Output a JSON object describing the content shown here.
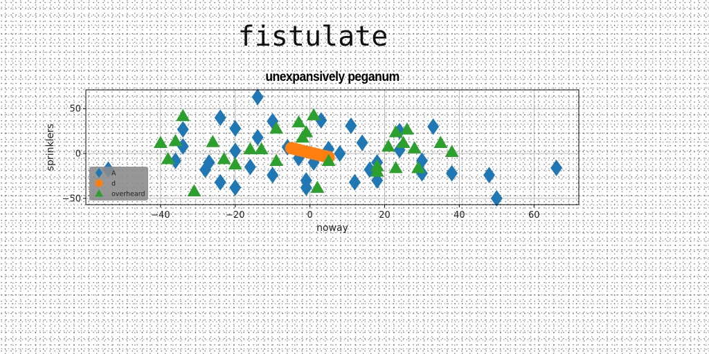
{
  "page": {
    "title": "fistulate"
  },
  "chart_data": {
    "type": "scatter",
    "title": "unexpansively peganum",
    "xlabel": "noway",
    "ylabel": "sprinklers",
    "xlim": [
      -60,
      72
    ],
    "ylim": [
      -57,
      71
    ],
    "xticks": [
      -40,
      -20,
      0,
      20,
      40,
      60
    ],
    "yticks": [
      -50,
      0,
      50
    ],
    "grid": true,
    "legend_position": "lower-left",
    "series": [
      {
        "name": "A",
        "marker": "diamond",
        "color": "#1f77b4",
        "points": [
          [
            -54,
            -18
          ],
          [
            -34,
            27
          ],
          [
            -34,
            8
          ],
          [
            -36,
            -8
          ],
          [
            -28,
            -18
          ],
          [
            -27,
            -10
          ],
          [
            -24,
            40
          ],
          [
            -24,
            -32
          ],
          [
            -20,
            28
          ],
          [
            -20,
            3
          ],
          [
            -20,
            -38
          ],
          [
            -16,
            -15
          ],
          [
            -14,
            63
          ],
          [
            -14,
            18
          ],
          [
            -10,
            36
          ],
          [
            -10,
            -24
          ],
          [
            -6,
            7
          ],
          [
            -3,
            -5
          ],
          [
            -1,
            -30
          ],
          [
            -1,
            -38
          ],
          [
            1,
            -10
          ],
          [
            3,
            37
          ],
          [
            5,
            5
          ],
          [
            8,
            0
          ],
          [
            11,
            31
          ],
          [
            12,
            -32
          ],
          [
            14,
            12
          ],
          [
            16,
            -18
          ],
          [
            18,
            -30
          ],
          [
            18,
            -10
          ],
          [
            24,
            4
          ],
          [
            24,
            25
          ],
          [
            30,
            -8
          ],
          [
            30,
            -22
          ],
          [
            33,
            30
          ],
          [
            38,
            -22
          ],
          [
            48,
            -24
          ],
          [
            50,
            -50
          ],
          [
            66,
            -16
          ]
        ]
      },
      {
        "name": "d",
        "marker": "circle",
        "color": "#ff7f0e",
        "points": [
          [
            -5,
            6
          ],
          [
            -4,
            5
          ],
          [
            -3,
            4
          ],
          [
            -2,
            3
          ],
          [
            -1,
            2
          ],
          [
            0,
            1
          ],
          [
            1,
            0
          ],
          [
            2,
            -1
          ],
          [
            3,
            -2
          ],
          [
            4,
            -3
          ],
          [
            5,
            -4
          ]
        ]
      },
      {
        "name": "overheard",
        "marker": "triangle",
        "color": "#2ca02c",
        "points": [
          [
            -40,
            12
          ],
          [
            -38,
            -6
          ],
          [
            -36,
            14
          ],
          [
            -34,
            42
          ],
          [
            -31,
            -42
          ],
          [
            -26,
            13
          ],
          [
            -23,
            -6
          ],
          [
            -20,
            -12
          ],
          [
            -16,
            5
          ],
          [
            -13,
            5
          ],
          [
            -9,
            28
          ],
          [
            -9,
            -8
          ],
          [
            -3,
            35
          ],
          [
            -2,
            18
          ],
          [
            -1,
            24
          ],
          [
            1,
            43
          ],
          [
            2,
            -38
          ],
          [
            5,
            -8
          ],
          [
            18,
            -20
          ],
          [
            18,
            -14
          ],
          [
            21,
            8
          ],
          [
            23,
            24
          ],
          [
            23,
            -16
          ],
          [
            25,
            12
          ],
          [
            26,
            27
          ],
          [
            28,
            6
          ],
          [
            29,
            -16
          ],
          [
            35,
            12
          ],
          [
            38,
            2
          ]
        ]
      }
    ]
  },
  "colors": {
    "axes_frame": "#000000",
    "grid": "#b0b0b0",
    "legend_background": "#8c8c8c"
  }
}
